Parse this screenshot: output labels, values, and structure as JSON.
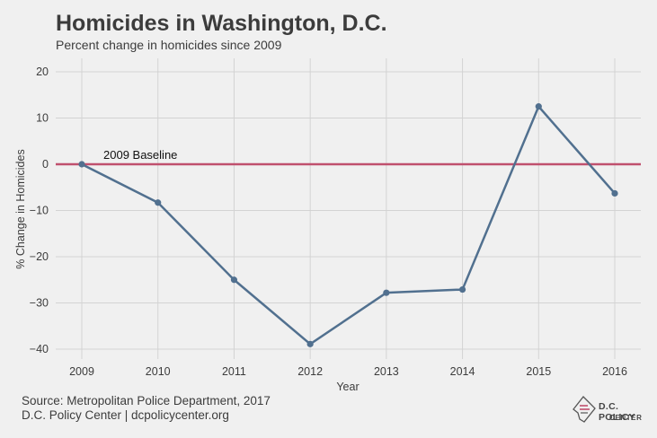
{
  "title": "Homicides in Washington, D.C.",
  "subtitle": "Percent change in homicides since 2009",
  "source_line1": "Source: Metropolitan Police Department, 2017",
  "source_line2": "D.C. Policy Center | dcpolicycenter.org",
  "logo": {
    "line1": "D.C. POLICY",
    "line2": "CENTER"
  },
  "chart_data": {
    "type": "line",
    "title": "Homicides in Washington, D.C.",
    "subtitle": "Percent change in homicides since 2009",
    "xlabel": "Year",
    "ylabel": "% Change in Homicides",
    "x": [
      2009,
      2010,
      2011,
      2012,
      2013,
      2014,
      2015,
      2016
    ],
    "series": [
      {
        "values": [
          0,
          -8.3,
          -25.0,
          -38.9,
          -27.8,
          -27.1,
          12.5,
          -6.3
        ],
        "color": "#51708f"
      }
    ],
    "ylim": [
      -43,
      22
    ],
    "yticks": [
      20,
      10,
      0,
      -10,
      -20,
      -30,
      -40
    ],
    "ytick_labels": [
      "20",
      "10",
      "0",
      "−10",
      "−20",
      "−30",
      "−40"
    ],
    "grid": true,
    "baseline": {
      "value": 0,
      "label": "2009 Baseline",
      "color": "#c0506e"
    }
  }
}
